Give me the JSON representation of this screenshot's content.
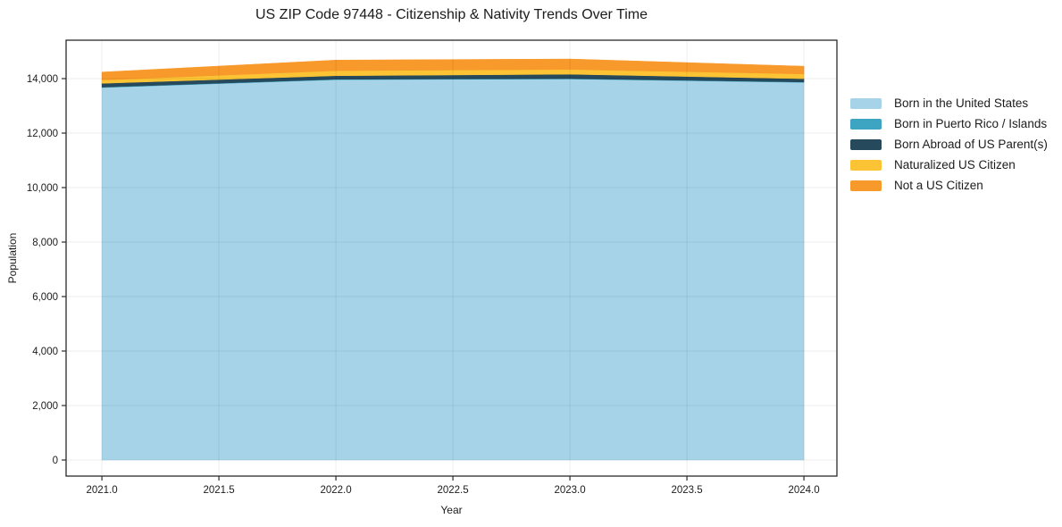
{
  "title": "US ZIP Code 97448 - Citizenship & Nativity Trends Over Time",
  "chart_data": {
    "type": "area",
    "stacked": true,
    "title": "US ZIP Code 97448 - Citizenship & Nativity Trends Over Time",
    "xlabel": "Year",
    "ylabel": "Population",
    "x": [
      2021,
      2022,
      2023,
      2024
    ],
    "series": [
      {
        "name": "Born in the United States",
        "color": "#a6d3e8",
        "values": [
          13670,
          13960,
          13985,
          13860
        ]
      },
      {
        "name": "Born in Puerto Rico / Islands",
        "color": "#3da5c2",
        "values": [
          15,
          15,
          15,
          15
        ]
      },
      {
        "name": "Born Abroad of US Parent(s)",
        "color": "#26495c",
        "values": [
          140,
          130,
          160,
          120
        ]
      },
      {
        "name": "Naturalized US Citizen",
        "color": "#fcc434",
        "values": [
          120,
          185,
          175,
          175
        ]
      },
      {
        "name": "Not a US Citizen",
        "color": "#f8992b",
        "values": [
          295,
          390,
          385,
          285
        ]
      }
    ],
    "xticks": [
      2021.0,
      2021.5,
      2022.0,
      2022.5,
      2023.0,
      2023.5,
      2024.0
    ],
    "yticks": [
      0,
      2000,
      4000,
      6000,
      8000,
      10000,
      12000,
      14000
    ],
    "xlim": [
      2020.847,
      2024.141
    ],
    "ylim": [
      -590,
      15410
    ],
    "grid": true,
    "legend_position": "right",
    "axis_color": "#2b2b2b",
    "grid_color": "rgba(0,0,0,0.07)",
    "tick_label_color": "#1c1c1c"
  }
}
